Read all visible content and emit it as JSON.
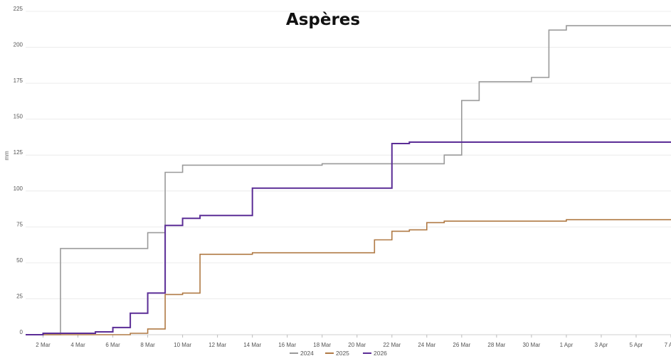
{
  "chart_data": {
    "type": "line",
    "step": true,
    "title": "Aspères",
    "xlabel": "",
    "ylabel": "mm",
    "ylim": [
      0,
      225
    ],
    "yticks": [
      0,
      25,
      50,
      75,
      100,
      125,
      150,
      175,
      200,
      225
    ],
    "xlim": [
      "2024-03-01",
      "2024-04-07"
    ],
    "xticks": [
      {
        "date": "2024-03-02",
        "label": "2 Mar"
      },
      {
        "date": "2024-03-04",
        "label": "4 Mar"
      },
      {
        "date": "2024-03-06",
        "label": "6 Mar"
      },
      {
        "date": "2024-03-08",
        "label": "8 Mar"
      },
      {
        "date": "2024-03-10",
        "label": "10 Mar"
      },
      {
        "date": "2024-03-12",
        "label": "12 Mar"
      },
      {
        "date": "2024-03-14",
        "label": "14 Mar"
      },
      {
        "date": "2024-03-16",
        "label": "16 Mar"
      },
      {
        "date": "2024-03-18",
        "label": "18 Mar"
      },
      {
        "date": "2024-03-20",
        "label": "20 Mar"
      },
      {
        "date": "2024-03-22",
        "label": "22 Mar"
      },
      {
        "date": "2024-03-24",
        "label": "24 Mar"
      },
      {
        "date": "2024-03-26",
        "label": "26 Mar"
      },
      {
        "date": "2024-03-28",
        "label": "28 Mar"
      },
      {
        "date": "2024-03-30",
        "label": "30 Mar"
      },
      {
        "date": "2024-04-01",
        "label": "1 Apr"
      },
      {
        "date": "2024-04-03",
        "label": "3 Apr"
      },
      {
        "date": "2024-04-05",
        "label": "5 Apr"
      },
      {
        "date": "2024-04-07",
        "label": "7 Apr"
      }
    ],
    "grid": true,
    "legend_position": "bottom",
    "series": [
      {
        "name": "2024",
        "color": "#9a9a9a",
        "points": [
          [
            "2024-03-01",
            0
          ],
          [
            "2024-03-03",
            0
          ],
          [
            "2024-03-03",
            60
          ],
          [
            "2024-03-08",
            60
          ],
          [
            "2024-03-08",
            71
          ],
          [
            "2024-03-09",
            71
          ],
          [
            "2024-03-09",
            113
          ],
          [
            "2024-03-10",
            113
          ],
          [
            "2024-03-10",
            118
          ],
          [
            "2024-03-18",
            118
          ],
          [
            "2024-03-18",
            119
          ],
          [
            "2024-03-25",
            119
          ],
          [
            "2024-03-25",
            125
          ],
          [
            "2024-03-26",
            125
          ],
          [
            "2024-03-26",
            163
          ],
          [
            "2024-03-27",
            163
          ],
          [
            "2024-03-27",
            176
          ],
          [
            "2024-03-30",
            176
          ],
          [
            "2024-03-30",
            179
          ],
          [
            "2024-03-31",
            179
          ],
          [
            "2024-03-31",
            212
          ],
          [
            "2024-04-01",
            212
          ],
          [
            "2024-04-01",
            215
          ],
          [
            "2024-04-07",
            215
          ]
        ]
      },
      {
        "name": "2025",
        "color": "#b07a45",
        "points": [
          [
            "2024-03-01",
            0
          ],
          [
            "2024-03-07",
            0
          ],
          [
            "2024-03-07",
            1
          ],
          [
            "2024-03-08",
            1
          ],
          [
            "2024-03-08",
            4
          ],
          [
            "2024-03-09",
            4
          ],
          [
            "2024-03-09",
            28
          ],
          [
            "2024-03-10",
            28
          ],
          [
            "2024-03-10",
            29
          ],
          [
            "2024-03-11",
            29
          ],
          [
            "2024-03-11",
            56
          ],
          [
            "2024-03-14",
            56
          ],
          [
            "2024-03-14",
            57
          ],
          [
            "2024-03-21",
            57
          ],
          [
            "2024-03-21",
            66
          ],
          [
            "2024-03-22",
            66
          ],
          [
            "2024-03-22",
            72
          ],
          [
            "2024-03-23",
            72
          ],
          [
            "2024-03-23",
            73
          ],
          [
            "2024-03-24",
            73
          ],
          [
            "2024-03-24",
            78
          ],
          [
            "2024-03-25",
            78
          ],
          [
            "2024-03-25",
            79
          ],
          [
            "2024-04-01",
            79
          ],
          [
            "2024-04-01",
            80
          ],
          [
            "2024-04-07",
            80
          ]
        ]
      },
      {
        "name": "2026",
        "color": "#5b2d96",
        "points": [
          [
            "2024-03-01",
            0
          ],
          [
            "2024-03-02",
            0
          ],
          [
            "2024-03-02",
            1
          ],
          [
            "2024-03-05",
            1
          ],
          [
            "2024-03-05",
            2
          ],
          [
            "2024-03-06",
            2
          ],
          [
            "2024-03-06",
            5
          ],
          [
            "2024-03-07",
            5
          ],
          [
            "2024-03-07",
            15
          ],
          [
            "2024-03-08",
            15
          ],
          [
            "2024-03-08",
            29
          ],
          [
            "2024-03-09",
            29
          ],
          [
            "2024-03-09",
            76
          ],
          [
            "2024-03-10",
            76
          ],
          [
            "2024-03-10",
            81
          ],
          [
            "2024-03-11",
            81
          ],
          [
            "2024-03-11",
            83
          ],
          [
            "2024-03-14",
            83
          ],
          [
            "2024-03-14",
            102
          ],
          [
            "2024-03-22",
            102
          ],
          [
            "2024-03-22",
            133
          ],
          [
            "2024-03-23",
            133
          ],
          [
            "2024-03-23",
            134
          ],
          [
            "2024-04-07",
            134
          ]
        ]
      }
    ]
  }
}
